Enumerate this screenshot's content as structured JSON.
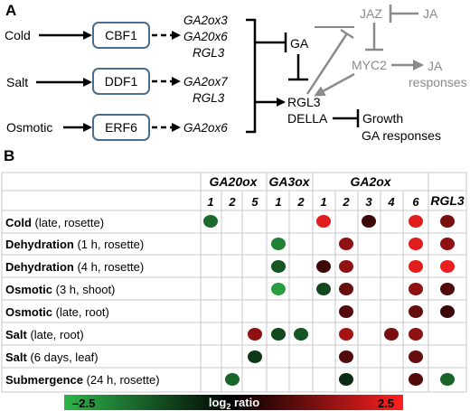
{
  "panel_a": {
    "label": "A",
    "stresses": [
      "Cold",
      "Salt",
      "Osmotic"
    ],
    "factors": [
      "CBF1",
      "DDF1",
      "ERF6"
    ],
    "targets": [
      [
        "GA2ox3",
        "GA20x6",
        "RGL3"
      ],
      [
        "GA2ox7",
        "RGL3"
      ],
      [
        "GA2ox6"
      ]
    ],
    "ga": "GA",
    "rgl3": "RGL3",
    "della": "DELLA",
    "growth": "Growth",
    "ga_responses": "GA responses",
    "jaz": "JAZ",
    "ja": "JA",
    "myc2": "MYC2",
    "ja_responses_1": "JA",
    "ja_responses_2": "responses"
  },
  "panel_b": {
    "label": "B",
    "group_headers": [
      "GA20ox",
      "GA3ox",
      "GA2ox",
      "RGL3"
    ],
    "column_numbers": [
      "1",
      "2",
      "5",
      "1",
      "2",
      "1",
      "2",
      "3",
      "4",
      "6"
    ],
    "rows": [
      {
        "bold": "Cold",
        "rest": " (late, rosette)"
      },
      {
        "bold": "Dehydration",
        "rest": " (1 h, rosette)"
      },
      {
        "bold": "Dehydration",
        "rest": " (4 h, rosette)"
      },
      {
        "bold": "Osmotic",
        "rest": " (3 h, shoot)"
      },
      {
        "bold": "Osmotic",
        "rest": " (late, root)"
      },
      {
        "bold": "Salt",
        "rest": " (late, root)"
      },
      {
        "bold": "Salt",
        "rest": " (6 days, leaf)"
      },
      {
        "bold": "Submergence",
        "rest": " (24 h, rosette)"
      }
    ],
    "scale": {
      "min_label": "–2.5",
      "max_label": "2.5",
      "title_main": "log",
      "title_sub": "2",
      "title_rest": " ratio",
      "colors": [
        "#2db34a",
        "#000000",
        "#ff2020"
      ]
    }
  },
  "chart_data": {
    "type": "heatmap",
    "columns": [
      "GA20ox1",
      "GA20ox2",
      "GA20ox5",
      "GA3ox1",
      "GA3ox2",
      "GA2ox1",
      "GA2ox2",
      "GA2ox3",
      "GA2ox4",
      "GA2ox6",
      "RGL3"
    ],
    "rows": [
      "Cold (late, rosette)",
      "Dehydration (1 h, rosette)",
      "Dehydration (4 h, rosette)",
      "Osmotic (3 h, shoot)",
      "Osmotic (late, root)",
      "Salt (late, root)",
      "Salt (6 days, leaf)",
      "Submergence (24 h, rosette)"
    ],
    "values": [
      [
        -1.5,
        null,
        null,
        null,
        null,
        2.2,
        null,
        0.6,
        null,
        2.2,
        1.2
      ],
      [
        null,
        null,
        null,
        -1.8,
        null,
        null,
        1.4,
        null,
        null,
        2.2,
        1.4
      ],
      [
        null,
        null,
        null,
        -1.2,
        null,
        0.6,
        1.4,
        null,
        null,
        2.2,
        2.3
      ],
      [
        null,
        null,
        null,
        -2.2,
        null,
        -1.0,
        1.0,
        null,
        null,
        1.4,
        0.8
      ],
      [
        null,
        null,
        null,
        null,
        null,
        null,
        0.8,
        null,
        null,
        1.0,
        0.6
      ],
      [
        null,
        null,
        1.4,
        -1.0,
        -1.2,
        null,
        1.6,
        null,
        1.2,
        1.4,
        null
      ],
      [
        null,
        null,
        -0.8,
        null,
        null,
        null,
        0.8,
        null,
        null,
        1.0,
        null
      ],
      [
        null,
        -1.4,
        null,
        null,
        null,
        null,
        -0.6,
        null,
        null,
        0.8,
        -1.4
      ]
    ],
    "scale_range": [
      -2.5,
      2.5
    ]
  }
}
